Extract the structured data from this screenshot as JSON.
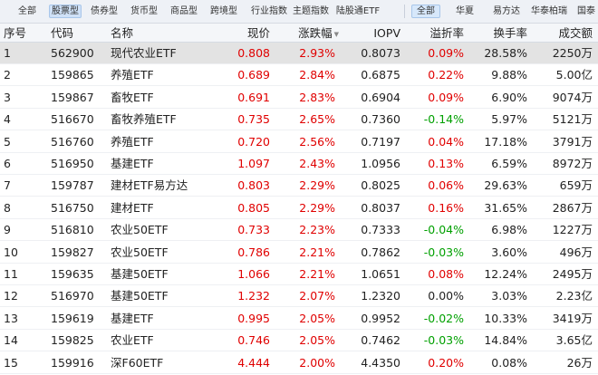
{
  "tabs_left": [
    {
      "label": "全部",
      "active": false
    },
    {
      "label": "股票型",
      "active": true
    },
    {
      "label": "债券型",
      "active": false
    },
    {
      "label": "货币型",
      "active": false
    },
    {
      "label": "商品型",
      "active": false
    },
    {
      "label": "跨境型",
      "active": false
    },
    {
      "label": "行业指数",
      "active": false
    },
    {
      "label": "主题指数",
      "active": false
    },
    {
      "label": "陆股通ETF",
      "active": false
    }
  ],
  "tabs_right": [
    {
      "label": "全部",
      "active": true
    },
    {
      "label": "华夏",
      "active": false
    },
    {
      "label": "易方达",
      "active": false
    },
    {
      "label": "华泰柏瑞",
      "active": false
    },
    {
      "label": "国泰",
      "active": false
    }
  ],
  "columns": {
    "idx": "序号",
    "code": "代码",
    "name": "名称",
    "price": "现价",
    "change": "涨跌幅",
    "iopv": "IOPV",
    "premium": "溢折率",
    "turnover": "换手率",
    "amount": "成交额"
  },
  "colors": {
    "up": "#e00000",
    "down": "#00a000",
    "neutral": "#222222"
  },
  "rows": [
    {
      "idx": "1",
      "code": "562900",
      "name": "现代农业ETF",
      "price": "0.808",
      "change": "2.93%",
      "iopv": "0.8073",
      "premium": "0.09%",
      "premium_dir": "up",
      "turnover": "28.58%",
      "amount": "2250万"
    },
    {
      "idx": "2",
      "code": "159865",
      "name": "养殖ETF",
      "price": "0.689",
      "change": "2.84%",
      "iopv": "0.6875",
      "premium": "0.22%",
      "premium_dir": "up",
      "turnover": "9.88%",
      "amount": "5.00亿"
    },
    {
      "idx": "3",
      "code": "159867",
      "name": "畜牧ETF",
      "price": "0.691",
      "change": "2.83%",
      "iopv": "0.6904",
      "premium": "0.09%",
      "premium_dir": "up",
      "turnover": "6.90%",
      "amount": "9074万"
    },
    {
      "idx": "4",
      "code": "516670",
      "name": "畜牧养殖ETF",
      "price": "0.735",
      "change": "2.65%",
      "iopv": "0.7360",
      "premium": "-0.14%",
      "premium_dir": "down",
      "turnover": "5.97%",
      "amount": "5121万"
    },
    {
      "idx": "5",
      "code": "516760",
      "name": "养殖ETF",
      "price": "0.720",
      "change": "2.56%",
      "iopv": "0.7197",
      "premium": "0.04%",
      "premium_dir": "up",
      "turnover": "17.18%",
      "amount": "3791万"
    },
    {
      "idx": "6",
      "code": "516950",
      "name": "基建ETF",
      "price": "1.097",
      "change": "2.43%",
      "iopv": "1.0956",
      "premium": "0.13%",
      "premium_dir": "up",
      "turnover": "6.59%",
      "amount": "8972万"
    },
    {
      "idx": "7",
      "code": "159787",
      "name": "建材ETF易方达",
      "price": "0.803",
      "change": "2.29%",
      "iopv": "0.8025",
      "premium": "0.06%",
      "premium_dir": "up",
      "turnover": "29.63%",
      "amount": "659万"
    },
    {
      "idx": "8",
      "code": "516750",
      "name": "建材ETF",
      "price": "0.805",
      "change": "2.29%",
      "iopv": "0.8037",
      "premium": "0.16%",
      "premium_dir": "up",
      "turnover": "31.65%",
      "amount": "2867万"
    },
    {
      "idx": "9",
      "code": "516810",
      "name": "农业50ETF",
      "price": "0.733",
      "change": "2.23%",
      "iopv": "0.7333",
      "premium": "-0.04%",
      "premium_dir": "down",
      "turnover": "6.98%",
      "amount": "1227万"
    },
    {
      "idx": "10",
      "code": "159827",
      "name": "农业50ETF",
      "price": "0.786",
      "change": "2.21%",
      "iopv": "0.7862",
      "premium": "-0.03%",
      "premium_dir": "down",
      "turnover": "3.60%",
      "amount": "496万"
    },
    {
      "idx": "11",
      "code": "159635",
      "name": "基建50ETF",
      "price": "1.066",
      "change": "2.21%",
      "iopv": "1.0651",
      "premium": "0.08%",
      "premium_dir": "up",
      "turnover": "12.24%",
      "amount": "2495万"
    },
    {
      "idx": "12",
      "code": "516970",
      "name": "基建50ETF",
      "price": "1.232",
      "change": "2.07%",
      "iopv": "1.2320",
      "premium": "0.00%",
      "premium_dir": "neutral",
      "turnover": "3.03%",
      "amount": "2.23亿"
    },
    {
      "idx": "13",
      "code": "159619",
      "name": "基建ETF",
      "price": "0.995",
      "change": "2.05%",
      "iopv": "0.9952",
      "premium": "-0.02%",
      "premium_dir": "down",
      "turnover": "10.33%",
      "amount": "3419万"
    },
    {
      "idx": "14",
      "code": "159825",
      "name": "农业ETF",
      "price": "0.746",
      "change": "2.05%",
      "iopv": "0.7462",
      "premium": "-0.03%",
      "premium_dir": "down",
      "turnover": "14.84%",
      "amount": "3.65亿"
    },
    {
      "idx": "15",
      "code": "159916",
      "name": "深F60ETF",
      "price": "4.444",
      "change": "2.00%",
      "iopv": "4.4350",
      "premium": "0.20%",
      "premium_dir": "up",
      "turnover": "0.08%",
      "amount": "26万"
    }
  ],
  "selected_row": 0
}
